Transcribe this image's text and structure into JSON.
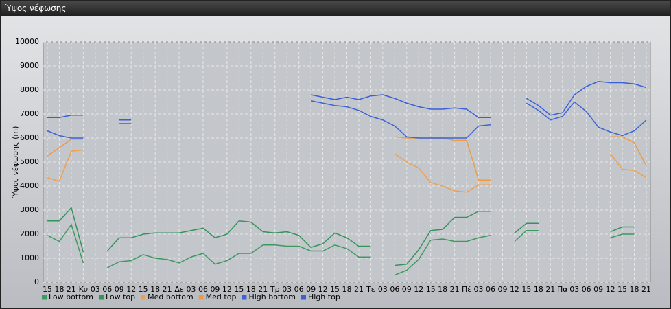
{
  "window": {
    "title": "Ύψος νέφωσης"
  },
  "chart_data": {
    "type": "line",
    "ylabel": "Ύψος νέφωσης (m)",
    "categories": [
      "15",
      "18",
      "21",
      "Κυ",
      "03",
      "06",
      "09",
      "12",
      "15",
      "18",
      "21",
      "Δε",
      "03",
      "06",
      "09",
      "12",
      "15",
      "18",
      "21",
      "Τρ",
      "03",
      "06",
      "09",
      "12",
      "15",
      "18",
      "21",
      "Τε",
      "03",
      "06",
      "09",
      "12",
      "15",
      "18",
      "21",
      "Πέ",
      "03",
      "06",
      "09",
      "12",
      "15",
      "18",
      "21",
      "Πα",
      "03",
      "06",
      "09",
      "12",
      "15",
      "18",
      "21"
    ],
    "ylim": [
      0,
      10000
    ],
    "yticks": [
      0,
      1000,
      2000,
      3000,
      4000,
      5000,
      6000,
      7000,
      8000,
      9000,
      10000
    ],
    "grid": true,
    "legend": "bottom",
    "series": [
      {
        "name": "Low bottom",
        "color": "#3c9a5f",
        "values": [
          1950,
          1700,
          2400,
          800,
          null,
          600,
          850,
          900,
          1150,
          1000,
          950,
          800,
          1050,
          1200,
          750,
          900,
          1200,
          1200,
          1550,
          1550,
          1500,
          1500,
          1300,
          1300,
          1550,
          1400,
          1050,
          1050,
          null,
          300,
          500,
          950,
          1750,
          1800,
          1700,
          1700,
          1850,
          1950,
          null,
          1700,
          2150,
          2150,
          null,
          null,
          null,
          null,
          null,
          1850,
          2000,
          2000,
          null
        ]
      },
      {
        "name": "Low top",
        "color": "#35935a",
        "values": [
          2550,
          2550,
          3100,
          1250,
          null,
          1300,
          1850,
          1850,
          2000,
          2050,
          2050,
          2050,
          2150,
          2250,
          1850,
          2000,
          2550,
          2500,
          2100,
          2050,
          2100,
          1950,
          1450,
          1600,
          2050,
          1850,
          1500,
          1500,
          null,
          700,
          750,
          1350,
          2150,
          2200,
          2700,
          2700,
          2950,
          2950,
          null,
          2050,
          2450,
          2450,
          null,
          null,
          null,
          null,
          null,
          2100,
          2300,
          2300,
          null
        ]
      },
      {
        "name": "Med bottom",
        "color": "#f0a04b",
        "values": [
          4350,
          4200,
          5450,
          5500,
          null,
          null,
          null,
          null,
          null,
          null,
          null,
          null,
          null,
          null,
          null,
          null,
          null,
          null,
          null,
          null,
          null,
          null,
          null,
          null,
          null,
          null,
          null,
          null,
          null,
          5350,
          5000,
          4750,
          4150,
          4000,
          3800,
          3750,
          4050,
          4050,
          null,
          null,
          null,
          null,
          null,
          null,
          null,
          null,
          null,
          5350,
          4700,
          4650,
          4350
        ]
      },
      {
        "name": "Med top",
        "color": "#ee9a45",
        "values": [
          5250,
          5600,
          5950,
          5950,
          null,
          null,
          null,
          null,
          null,
          null,
          null,
          null,
          null,
          null,
          null,
          null,
          null,
          null,
          null,
          null,
          null,
          null,
          null,
          null,
          null,
          null,
          null,
          null,
          null,
          6050,
          6000,
          6000,
          6000,
          6000,
          5900,
          5900,
          4250,
          4250,
          null,
          null,
          null,
          null,
          null,
          null,
          null,
          null,
          null,
          6050,
          6050,
          5800,
          4850
        ]
      },
      {
        "name": "High bottom",
        "color": "#3d63d6",
        "values": [
          6300,
          6100,
          6000,
          6000,
          null,
          null,
          6600,
          6600,
          null,
          null,
          null,
          null,
          null,
          null,
          null,
          null,
          null,
          null,
          null,
          null,
          null,
          null,
          7550,
          7450,
          7350,
          7300,
          7150,
          6900,
          6750,
          6500,
          6050,
          6000,
          6000,
          6000,
          6000,
          6000,
          6500,
          6550,
          null,
          null,
          7450,
          7150,
          6750,
          6900,
          7500,
          7100,
          6450,
          6250,
          6100,
          6300,
          6750
        ]
      },
      {
        "name": "High top",
        "color": "#3a5fd9",
        "values": [
          6850,
          6850,
          6950,
          6950,
          null,
          null,
          6750,
          6750,
          null,
          null,
          null,
          null,
          null,
          null,
          null,
          null,
          null,
          null,
          null,
          null,
          null,
          null,
          7800,
          7700,
          7600,
          7700,
          7600,
          7750,
          7800,
          7650,
          7450,
          7300,
          7200,
          7200,
          7250,
          7200,
          6850,
          6850,
          null,
          null,
          7650,
          7350,
          6950,
          7050,
          7800,
          8150,
          8350,
          8300,
          8300,
          8250,
          8100
        ]
      }
    ]
  }
}
